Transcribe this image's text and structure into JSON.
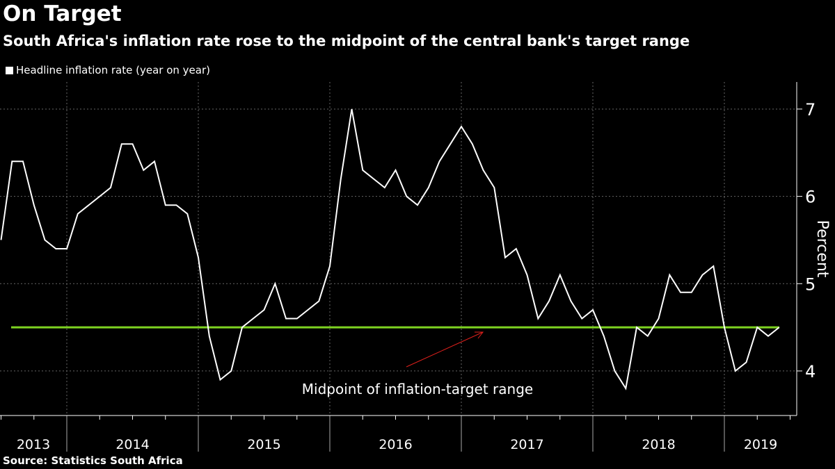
{
  "title": "On Target",
  "subtitle": "South Africa's inflation rate rose to the midpoint of the central bank's target range",
  "source": "Source: Statistics South Africa",
  "chart_data": {
    "type": "line",
    "ylabel": "Percent",
    "ylim": [
      3.49,
      7.31
    ],
    "yticks": [
      4,
      5,
      6,
      7
    ],
    "grid": true,
    "legend_placement": "top-left",
    "x_start": "2013-06",
    "x_end": "2019-05",
    "xlim": [
      "2013-06",
      "2019-08"
    ],
    "year_labels": [
      "2013",
      "2014",
      "2015",
      "2016",
      "2017",
      "2018",
      "2019"
    ],
    "series": [
      {
        "name": "Headline inflation rate (year on year)",
        "color": "#ffffff",
        "values": [
          5.5,
          6.4,
          6.4,
          5.9,
          5.5,
          5.4,
          5.4,
          5.8,
          5.9,
          6.0,
          6.1,
          6.6,
          6.6,
          6.3,
          6.4,
          5.9,
          5.9,
          5.8,
          5.3,
          4.4,
          3.9,
          4.0,
          4.5,
          4.6,
          4.7,
          5.0,
          4.6,
          4.6,
          4.7,
          4.8,
          5.2,
          6.2,
          7.0,
          6.3,
          6.2,
          6.1,
          6.3,
          6.0,
          5.9,
          6.1,
          6.4,
          6.6,
          6.8,
          6.6,
          6.3,
          6.1,
          5.3,
          5.4,
          5.1,
          4.6,
          4.8,
          5.1,
          4.8,
          4.6,
          4.7,
          4.4,
          4.0,
          3.8,
          4.5,
          4.4,
          4.6,
          5.1,
          4.9,
          4.9,
          5.1,
          5.2,
          4.5,
          4.0,
          4.1,
          4.5,
          4.4,
          4.5
        ]
      }
    ],
    "reference_line": {
      "value": 4.5,
      "color": "#7ed321",
      "label": "Midpoint of inflation-target range"
    },
    "annotation_arrow_color": "#e0201c"
  }
}
